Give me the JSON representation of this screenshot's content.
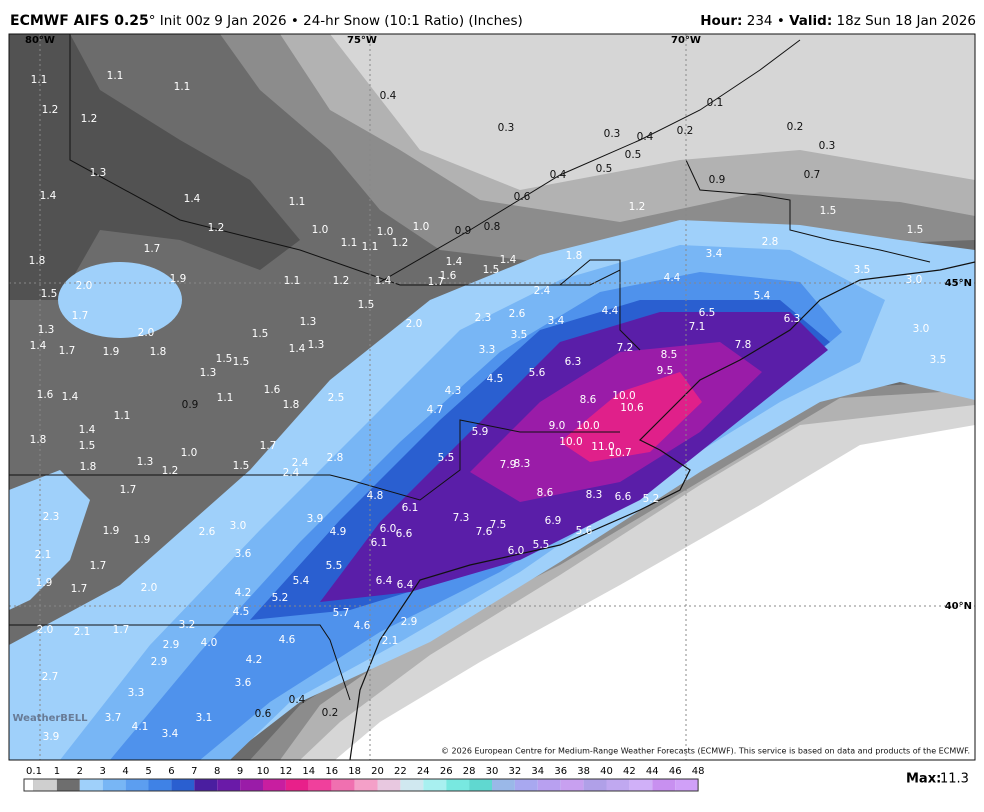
{
  "header": {
    "model": "ECMWF AIFS 0.25",
    "title": "° Init 00z 9 Jan 2026 • 24-hr Snow (10:1 Ratio) (Inches)",
    "hour_label": "Hour:",
    "hour": "234",
    "separator": "•",
    "valid_label": "Valid:",
    "valid": "18z Sun 18 Jan 2026"
  },
  "map": {
    "grid_labels": [
      "80°W",
      "75°W",
      "70°W",
      "45°N",
      "40°N"
    ],
    "labels": [
      "1.1",
      "1.1",
      "1.1",
      "1.2",
      "1.2",
      "1.3",
      "1.4",
      "1.4",
      "1.1",
      "1.2",
      "1.7",
      "1.8",
      "1.9",
      "2.0",
      "1.5",
      "1.7",
      "1.3",
      "2.0",
      "1.4",
      "1.7",
      "1.9",
      "1.8",
      "1.5",
      "1.5",
      "1.5",
      "1.3",
      "1.3",
      "1.4",
      "1.3",
      "1.6",
      "1.6",
      "1.4",
      "1.1",
      "0.9",
      "1.1",
      "1.8",
      "1.4",
      "1.5",
      "1.8",
      "1.0",
      "1.7",
      "1.3",
      "1.2",
      "1.5",
      "1.8",
      "2.4",
      "2.4",
      "2.8",
      "2.5",
      "0.4",
      "0.3",
      "0.3",
      "0.4",
      "0.2",
      "0.1",
      "0.5",
      "0.5",
      "0.4",
      "0.6",
      "0.2",
      "0.3",
      "0.7",
      "0.9",
      "1.2",
      "1.5",
      "1.5",
      "1.0",
      "1.1",
      "1.1",
      "1.0",
      "1.2",
      "1.0",
      "0.9",
      "0.8",
      "1.8",
      "1.4",
      "1.6",
      "1.5",
      "1.4",
      "1.1",
      "1.2",
      "1.4",
      "1.7",
      "1.5",
      "2.0",
      "2.4",
      "2.6",
      "2.3",
      "3.4",
      "3.5",
      "3.3",
      "4.4",
      "3.4",
      "2.8",
      "5.4",
      "6.5",
      "6.3",
      "7.1",
      "7.8",
      "4.4",
      "7.2",
      "8.5",
      "9.5",
      "6.3",
      "5.6",
      "4.5",
      "4.3",
      "4.7",
      "10.0",
      "10.6",
      "8.6",
      "9.0",
      "10.0",
      "10.0",
      "11.0",
      "10.7",
      "5.9",
      "5.5",
      "7.9",
      "8.3",
      "8.6",
      "8.3",
      "6.6",
      "5.2",
      "4.8",
      "6.1",
      "3.9",
      "3.0",
      "2.6",
      "6.0",
      "6.6",
      "4.9",
      "6.1",
      "7.3",
      "7.5",
      "7.6",
      "6.9",
      "5.6",
      "5.5",
      "6.0",
      "3.6",
      "5.5",
      "5.4",
      "4.2",
      "5.2",
      "4.5",
      "6.4",
      "6.4",
      "5.7",
      "4.6",
      "2.9",
      "3.5",
      "3.0",
      "3.0",
      "3.5",
      "1.7",
      "2.3",
      "1.9",
      "1.9",
      "2.1",
      "1.7",
      "1.9",
      "1.7",
      "2.0",
      "2.0",
      "2.1",
      "1.7",
      "3.2",
      "2.9",
      "4.0",
      "4.6",
      "4.2",
      "2.9",
      "2.7",
      "3.3",
      "3.6",
      "3.7",
      "4.1",
      "3.1",
      "3.4",
      "3.9",
      "0.2",
      "0.6",
      "0.4",
      "2.1"
    ],
    "credit": "© 2026 European Centre for Medium-Range Weather Forecasts (ECMWF). This service is based on data and products of the ECMWF.",
    "watermark": "WeatherBELL"
  },
  "colorbar": {
    "ticks": [
      "0.1",
      "1",
      "2",
      "3",
      "4",
      "5",
      "6",
      "7",
      "8",
      "9",
      "10",
      "12",
      "14",
      "16",
      "18",
      "20",
      "22",
      "24",
      "26",
      "28",
      "30",
      "32",
      "34",
      "36",
      "38",
      "40",
      "42",
      "44",
      "46",
      "48"
    ],
    "colors": [
      "#cfcfcf",
      "#6e6e6e",
      "#9fd0fa",
      "#78b6f5",
      "#5c9ef0",
      "#3f82e6",
      "#2a5fd0",
      "#4a1ea0",
      "#6a1aa8",
      "#9a1ca8",
      "#c81ea0",
      "#e8208a",
      "#f0409c",
      "#f070b0",
      "#f4a0c8",
      "#e8c8e0",
      "#d0e8f0",
      "#a8f0f0",
      "#78e8e0",
      "#60d8d0",
      "#9ab8e8",
      "#a8a8f0",
      "#b8a0f0",
      "#c8a0f0",
      "#b0a0e8",
      "#c0a8f0",
      "#d0b0f8",
      "#c890f0",
      "#d0a0f8"
    ]
  },
  "footer": {
    "max_label": "Max:",
    "max": "11.3"
  }
}
